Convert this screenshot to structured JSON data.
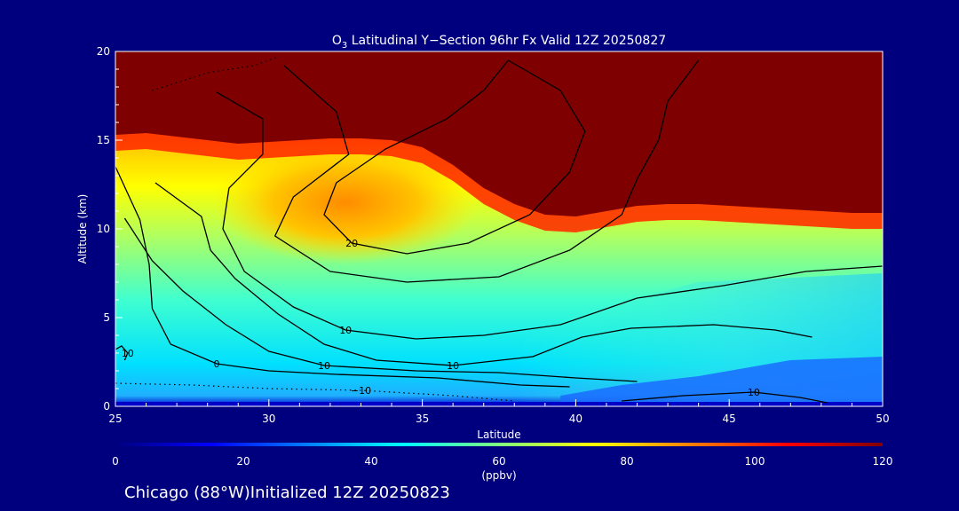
{
  "chart_data": {
    "type": "heatmap",
    "title_main": "O",
    "title_sub": "3",
    "title_rest": " Latitudinal Y−Section 96hr  Fx Valid 12Z 20250827",
    "xlabel": "Latitude",
    "ylabel": "Altitude (km)",
    "xlim": [
      25,
      50
    ],
    "ylim": [
      0,
      20
    ],
    "x_ticks": [
      25,
      30,
      35,
      40,
      45,
      50
    ],
    "y_ticks": [
      0,
      5,
      10,
      15,
      20
    ],
    "colorbar": {
      "range": [
        0,
        120
      ],
      "ticks": [
        0,
        20,
        40,
        60,
        80,
        100,
        120
      ],
      "unit": "(ppbv)",
      "colors": [
        "#00007f",
        "#0000ff",
        "#007fff",
        "#00ffff",
        "#7fff7f",
        "#ffff00",
        "#ff7f00",
        "#ff0000",
        "#7f0000"
      ]
    },
    "tropopause": [
      [
        25,
        15.3
      ],
      [
        26,
        15.4
      ],
      [
        27,
        15.2
      ],
      [
        28,
        15.0
      ],
      [
        29,
        14.8
      ],
      [
        30,
        14.9
      ],
      [
        31,
        15.0
      ],
      [
        32,
        15.1
      ],
      [
        33,
        15.1
      ],
      [
        34,
        15.0
      ],
      [
        35,
        14.6
      ],
      [
        36,
        13.6
      ],
      [
        37,
        12.3
      ],
      [
        38,
        11.4
      ],
      [
        39,
        10.8
      ],
      [
        40,
        10.7
      ],
      [
        41,
        11.0
      ],
      [
        42,
        11.3
      ],
      [
        43,
        11.4
      ],
      [
        44,
        11.4
      ],
      [
        45,
        11.3
      ],
      [
        46,
        11.2
      ],
      [
        47,
        11.1
      ],
      [
        48,
        11.0
      ],
      [
        49,
        10.9
      ],
      [
        50,
        10.9
      ]
    ],
    "contours": [
      {
        "label": "20",
        "points": [
          [
            37.8,
            19.5
          ],
          [
            39.5,
            17.8
          ],
          [
            40.3,
            15.5
          ],
          [
            39.8,
            13.2
          ],
          [
            38.5,
            10.8
          ],
          [
            36.5,
            9.2
          ],
          [
            34.5,
            8.6
          ],
          [
            32.7,
            9.2
          ],
          [
            31.8,
            10.8
          ],
          [
            32.2,
            12.6
          ],
          [
            33.8,
            14.5
          ],
          [
            35.8,
            16.2
          ],
          [
            37.0,
            17.8
          ],
          [
            37.8,
            19.5
          ]
        ]
      },
      {
        "label": "",
        "points": [
          [
            30.5,
            19.2
          ],
          [
            32.2,
            16.6
          ],
          [
            32.6,
            14.2
          ],
          [
            30.8,
            11.8
          ],
          [
            30.2,
            9.6
          ],
          [
            32.0,
            7.6
          ],
          [
            34.5,
            7.0
          ],
          [
            37.5,
            7.3
          ],
          [
            39.8,
            8.8
          ],
          [
            41.5,
            10.8
          ],
          [
            42.0,
            12.8
          ],
          [
            42.7,
            15.0
          ],
          [
            43.0,
            17.2
          ],
          [
            44.0,
            19.5
          ]
        ]
      },
      {
        "label": "10",
        "points": [
          [
            28.3,
            17.7
          ],
          [
            29.8,
            16.2
          ],
          [
            29.8,
            14.2
          ],
          [
            28.7,
            12.3
          ],
          [
            28.5,
            10.0
          ],
          [
            29.2,
            7.6
          ],
          [
            30.8,
            5.6
          ],
          [
            32.5,
            4.3
          ],
          [
            34.8,
            3.8
          ],
          [
            37.0,
            4.0
          ],
          [
            39.5,
            4.6
          ],
          [
            42.0,
            6.1
          ],
          [
            44.8,
            6.8
          ],
          [
            47.5,
            7.6
          ],
          [
            50,
            7.9
          ]
        ]
      },
      {
        "label": "10",
        "points": [
          [
            26.3,
            12.6
          ],
          [
            27.8,
            10.7
          ],
          [
            28.1,
            8.8
          ],
          [
            28.9,
            7.2
          ],
          [
            30.3,
            5.2
          ],
          [
            31.8,
            3.5
          ],
          [
            33.5,
            2.6
          ],
          [
            36.0,
            2.3
          ],
          [
            38.6,
            2.8
          ],
          [
            40.2,
            3.9
          ],
          [
            41.8,
            4.4
          ],
          [
            44.5,
            4.6
          ],
          [
            46.5,
            4.3
          ],
          [
            47.7,
            3.9
          ]
        ]
      },
      {
        "label": "10",
        "points": [
          [
            25.3,
            10.6
          ],
          [
            26.2,
            8.2
          ],
          [
            27.2,
            6.5
          ],
          [
            28.6,
            4.6
          ],
          [
            30.0,
            3.1
          ],
          [
            31.8,
            2.3
          ],
          [
            34.8,
            2.0
          ],
          [
            37.5,
            1.9
          ],
          [
            40.0,
            1.6
          ],
          [
            42.0,
            1.4
          ]
        ]
      },
      {
        "label": "0",
        "points": [
          [
            25.0,
            13.5
          ],
          [
            25.8,
            10.5
          ],
          [
            26.1,
            8.0
          ],
          [
            26.2,
            5.5
          ],
          [
            26.8,
            3.5
          ],
          [
            28.3,
            2.4
          ],
          [
            30.0,
            2.0
          ],
          [
            32.2,
            1.8
          ],
          [
            35.5,
            1.6
          ],
          [
            38.2,
            1.2
          ],
          [
            39.8,
            1.1
          ]
        ]
      },
      {
        "label": "10",
        "points": [
          [
            41.5,
            0.3
          ],
          [
            43.5,
            0.6
          ],
          [
            45.8,
            0.8
          ],
          [
            47.3,
            0.5
          ],
          [
            48.2,
            0.2
          ]
        ]
      },
      {
        "label": "10",
        "points": [
          [
            25.0,
            3.2
          ],
          [
            25.2,
            3.4
          ],
          [
            25.4,
            3.0
          ],
          [
            25.3,
            2.6
          ]
        ]
      }
    ],
    "dotted_contours": [
      {
        "label": "−10",
        "points": [
          [
            25.0,
            1.3
          ],
          [
            27.5,
            1.2
          ],
          [
            30.0,
            1.0
          ],
          [
            33.0,
            0.9
          ],
          [
            36.0,
            0.6
          ],
          [
            38.0,
            0.3
          ]
        ]
      },
      {
        "label": "",
        "points": [
          [
            26.2,
            17.8
          ],
          [
            28.0,
            18.8
          ],
          [
            29.5,
            19.2
          ],
          [
            30.3,
            19.7
          ]
        ]
      }
    ]
  },
  "footer": {
    "text": "Chicago (88°W)Initialized 12Z 20250823"
  }
}
